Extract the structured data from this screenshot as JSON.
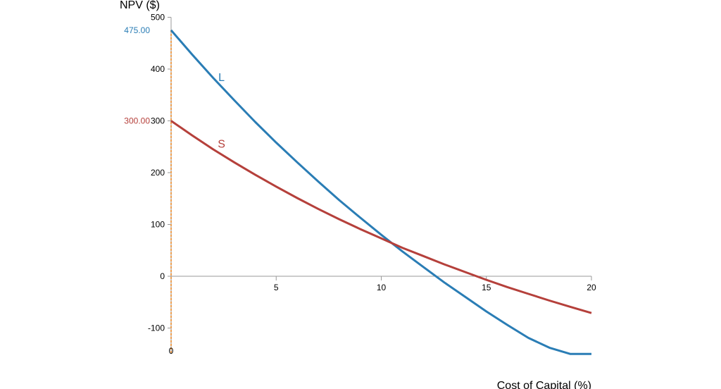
{
  "chart_data": {
    "type": "line",
    "title": "",
    "xlabel": "Cost of Capital (%)",
    "ylabel": "NPV ($)",
    "xlim": [
      0,
      20
    ],
    "ylim": [
      -150,
      500
    ],
    "xticks": [
      5,
      10,
      15,
      20
    ],
    "yticks": [
      -100,
      0,
      100,
      200,
      300,
      400,
      500
    ],
    "series": [
      {
        "name": "L",
        "color": "#2a7db5",
        "x": [
          0,
          1,
          2,
          3,
          4,
          5,
          6,
          7,
          8,
          9,
          10,
          11,
          12,
          13,
          14,
          15,
          16,
          17,
          18,
          19,
          20
        ],
        "y": [
          475,
          428,
          383,
          340,
          298,
          258,
          220,
          183,
          147,
          113,
          80,
          48,
          18,
          -12,
          -40,
          -68,
          -94,
          -119,
          -138,
          -150,
          -150
        ]
      },
      {
        "name": "S",
        "color": "#b5403b",
        "x": [
          0,
          1,
          2,
          3,
          4,
          5,
          6,
          7,
          8,
          9,
          10,
          11,
          12,
          13,
          14,
          15,
          16,
          17,
          18,
          19,
          20
        ],
        "y": [
          300,
          272,
          245,
          220,
          196,
          173,
          151,
          130,
          110,
          91,
          73,
          55,
          39,
          23,
          8,
          -7,
          -21,
          -34,
          -47,
          -59,
          -71
        ]
      }
    ],
    "value_labels": [
      {
        "text": "475.00",
        "color": "#2a7db5"
      },
      {
        "text": "300.00",
        "color": "#b5403b"
      }
    ],
    "marker_line": {
      "x": 0,
      "color": "#f0a050",
      "label": "0"
    }
  }
}
